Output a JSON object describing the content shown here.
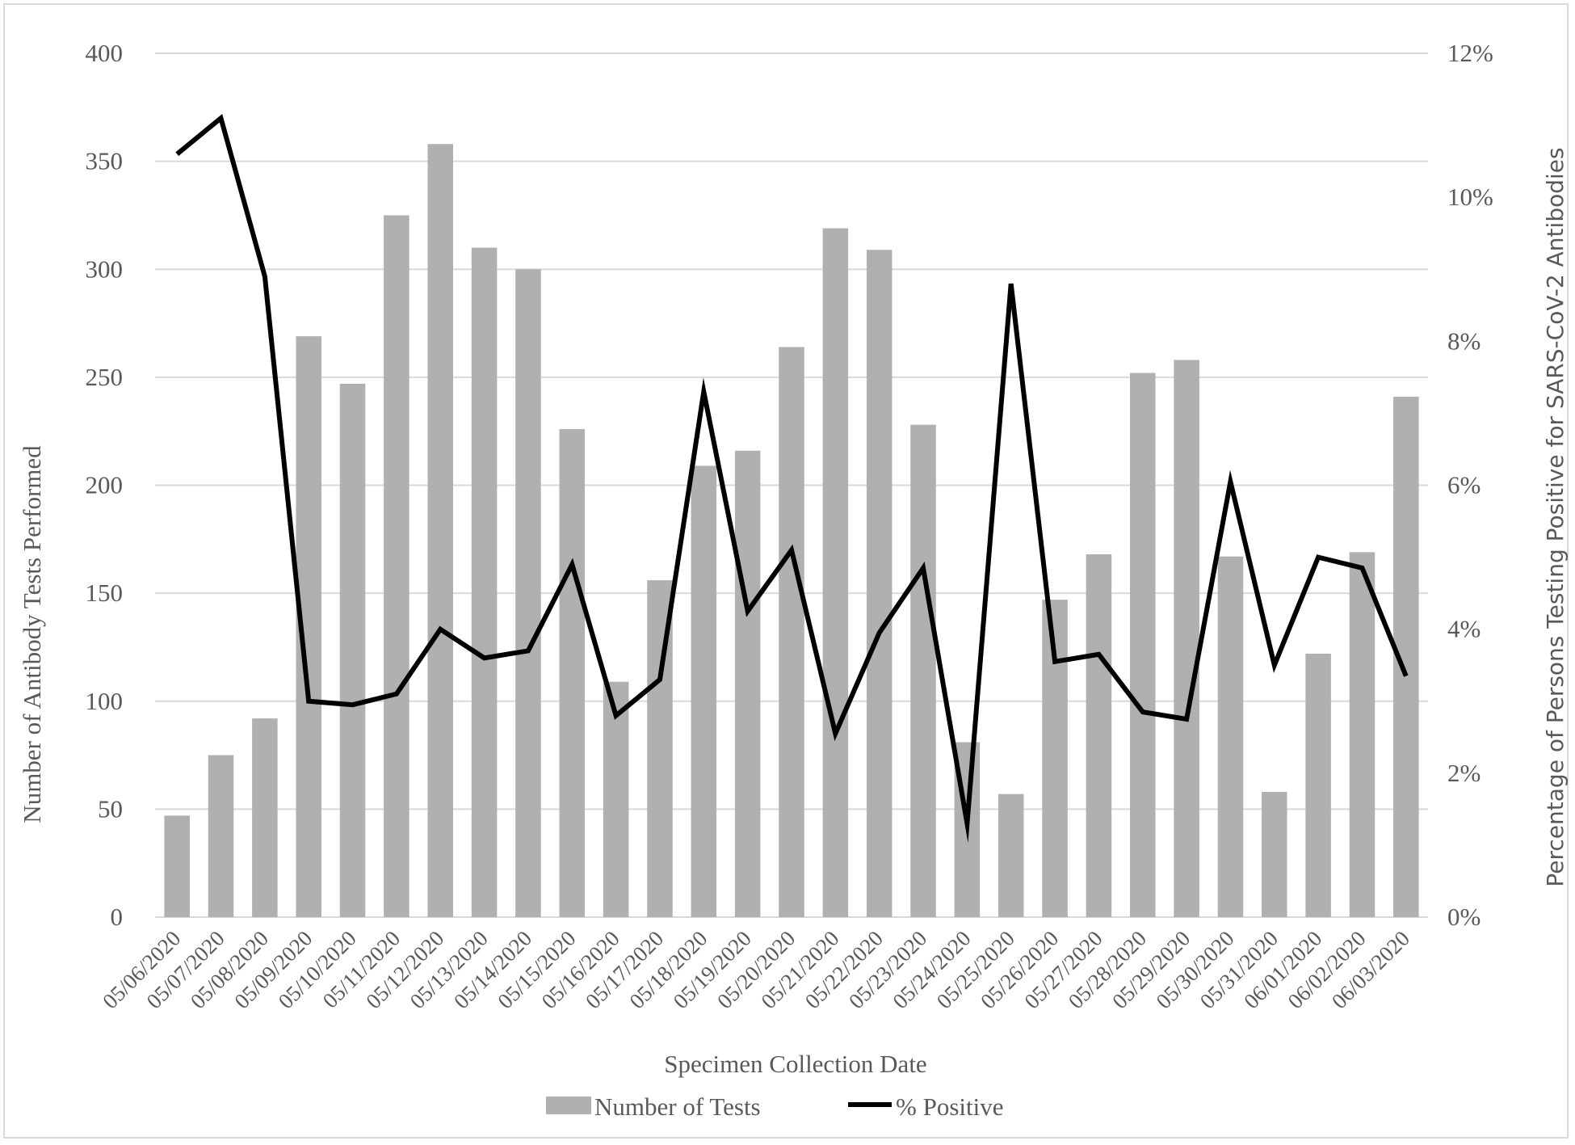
{
  "chart_data": {
    "type": "bar+line",
    "categories": [
      "05/06/2020",
      "05/07/2020",
      "05/08/2020",
      "05/09/2020",
      "05/10/2020",
      "05/11/2020",
      "05/12/2020",
      "05/13/2020",
      "05/14/2020",
      "05/15/2020",
      "05/16/2020",
      "05/17/2020",
      "05/18/2020",
      "05/19/2020",
      "05/20/2020",
      "05/21/2020",
      "05/22/2020",
      "05/23/2020",
      "05/24/2020",
      "05/25/2020",
      "05/26/2020",
      "05/27/2020",
      "05/28/2020",
      "05/29/2020",
      "05/30/2020",
      "05/31/2020",
      "06/01/2020",
      "06/02/2020",
      "06/03/2020"
    ],
    "series": [
      {
        "name": "Number of Tests",
        "type": "bar",
        "axis": "left",
        "color": "#b0b0b0",
        "values": [
          47,
          75,
          92,
          269,
          247,
          325,
          358,
          310,
          300,
          226,
          109,
          156,
          209,
          216,
          264,
          319,
          309,
          228,
          81,
          57,
          147,
          168,
          252,
          258,
          167,
          58,
          122,
          169,
          241
        ]
      },
      {
        "name": "% Positive",
        "type": "line",
        "axis": "right",
        "color": "#000000",
        "values": [
          10.6,
          11.1,
          8.9,
          3.0,
          2.95,
          3.1,
          4.0,
          3.6,
          3.7,
          4.9,
          2.8,
          3.3,
          7.3,
          4.25,
          5.1,
          2.55,
          3.95,
          4.85,
          1.3,
          8.8,
          3.55,
          3.65,
          2.85,
          2.75,
          6.05,
          3.5,
          5.0,
          4.85,
          3.35
        ]
      }
    ],
    "xlabel": "Specimen Collection Date",
    "ylabel": "Number of Antibody Tests Performed",
    "ylabel_right": "Percentage of Persons Testing Positive for SARS-CoV-2 Antibodies",
    "ylim": [
      0,
      400
    ],
    "ylim_right": [
      0,
      12
    ],
    "yticks": [
      "0",
      "50",
      "100",
      "150",
      "200",
      "250",
      "300",
      "350",
      "400"
    ],
    "yticks_right": [
      "0%",
      "2%",
      "4%",
      "6%",
      "8%",
      "10%",
      "12%"
    ],
    "grid": true,
    "legend_position": "bottom"
  }
}
